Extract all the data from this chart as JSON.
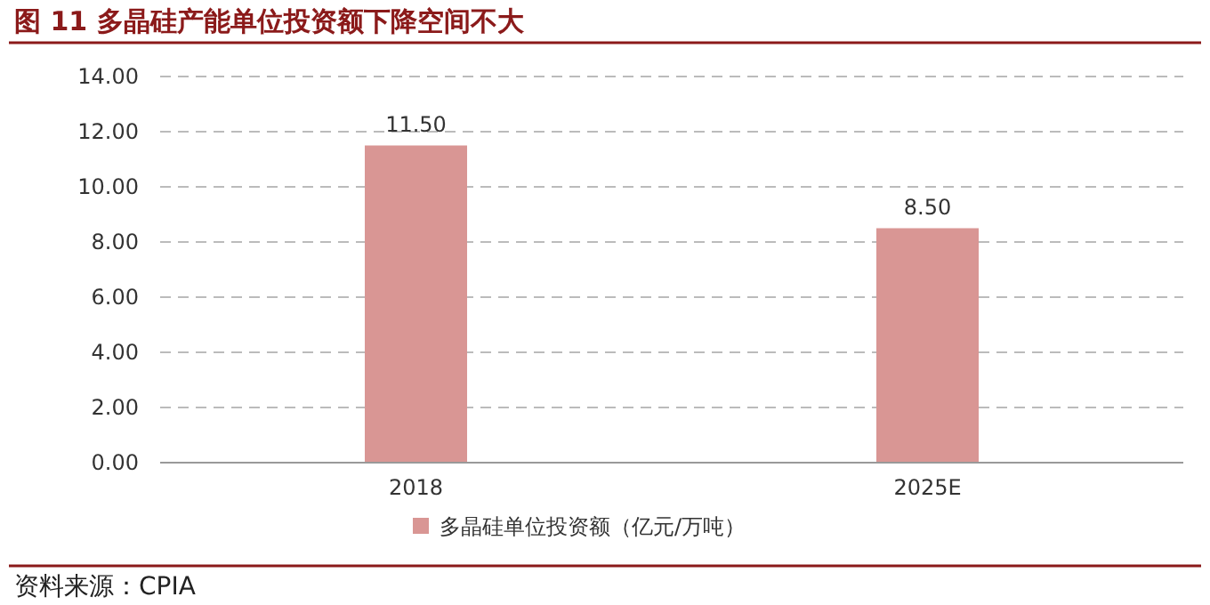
{
  "chart_data": {
    "type": "bar",
    "title": "图 11  多晶硅产能单位投资额下降空间不大",
    "categories": [
      "2018",
      "2025E"
    ],
    "series": [
      {
        "name": "多晶硅单位投资额（亿元/万吨）",
        "color": "#d99694",
        "values": [
          11.5,
          8.5
        ],
        "value_labels": [
          "11.50",
          "8.50"
        ]
      }
    ],
    "ylim": [
      0,
      14
    ],
    "yticks": [
      {
        "value": 0,
        "label": "0.00"
      },
      {
        "value": 2,
        "label": "2.00"
      },
      {
        "value": 4,
        "label": "4.00"
      },
      {
        "value": 6,
        "label": "6.00"
      },
      {
        "value": 8,
        "label": "8.00"
      },
      {
        "value": 10,
        "label": "10.00"
      },
      {
        "value": 12,
        "label": "12.00"
      },
      {
        "value": 14,
        "label": "14.00"
      }
    ],
    "grid": "y",
    "legend": "bottom",
    "annotations": [
      "资料来源：CPIA"
    ]
  }
}
